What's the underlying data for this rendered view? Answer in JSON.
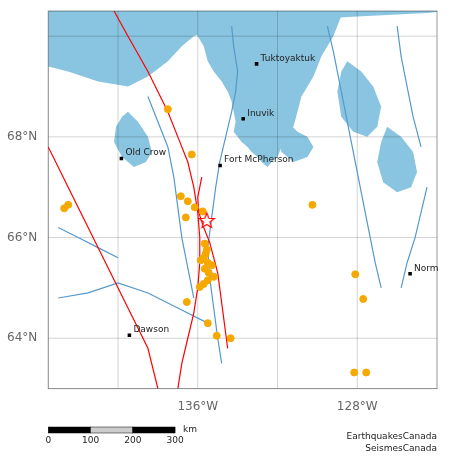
{
  "chart_data": {
    "type": "scatter",
    "xlim": [
      -143.5,
      -124.0
    ],
    "ylim": [
      63.0,
      70.5
    ],
    "xticks": [
      {
        "value": -136,
        "label": "136°W"
      },
      {
        "value": -128,
        "label": "128°W"
      }
    ],
    "yticks": [
      {
        "value": 64,
        "label": "64°N"
      },
      {
        "value": 66,
        "label": "66°N"
      },
      {
        "value": 68,
        "label": "68°N"
      }
    ],
    "grid": true,
    "grid_lons": [
      -140,
      -136,
      -132,
      -128
    ],
    "grid_lats": [
      64,
      66,
      68,
      70
    ],
    "series": [
      {
        "type": "area",
        "color": "#89c4e0",
        "x": [
          -143.5,
          -143.5,
          -142.5,
          -141.0,
          -139.5,
          -138.5,
          -137.5,
          -136.8,
          -136.2,
          -135.5,
          -134.8,
          -134.0,
          -133.2,
          -132.5,
          -131.5,
          -130.5,
          -129.5,
          -128.5,
          -127.5,
          -126.5,
          -125.5,
          -124.5,
          -124.0,
          -124.0
        ],
        "values": [
          70.5,
          69.4,
          69.3,
          69.1,
          69.0,
          69.2,
          69.5,
          69.8,
          70.0,
          70.1,
          70.15,
          70.2,
          70.25,
          70.28,
          70.3,
          70.32,
          70.35,
          70.38,
          70.4,
          70.42,
          70.44,
          70.46,
          70.48,
          70.5
        ]
      },
      {
        "type": "area",
        "color": "#89c4e0",
        "x": [
          -136.5,
          -136.3,
          -136.0,
          -135.7,
          -135.5,
          -135.2,
          -134.8,
          -134.5,
          -134.3,
          -134.2,
          -134.1,
          -134.2,
          -134.0,
          -133.8,
          -133.5,
          -133.3,
          -133.0,
          -132.8,
          -132.5,
          -132.3,
          -132.0,
          -131.8,
          -131.5,
          -131.2,
          -131.0,
          -130.8,
          -130.5,
          -130.2,
          -130.0,
          -129.8,
          -129.5,
          -129.2,
          -129.0,
          -128.8,
          -128.5
        ],
        "values": [
          70.5,
          70.2,
          70.0,
          69.8,
          69.5,
          69.3,
          69.1,
          68.9,
          68.7,
          68.5,
          68.3,
          68.1,
          68.0,
          67.9,
          67.8,
          67.7,
          67.6,
          67.5,
          67.4,
          67.5,
          67.6,
          67.8,
          68.0,
          68.2,
          68.5,
          68.8,
          69.0,
          69.2,
          69.4,
          69.6,
          69.8,
          70.0,
          70.2,
          70.4,
          70.5
        ]
      },
      {
        "type": "area",
        "color": "#89c4e0",
        "x": [
          -128.5,
          -127.8,
          -127.2,
          -126.8,
          -127.0,
          -127.5,
          -128.2,
          -128.8,
          -129.0,
          -128.8
        ],
        "values": [
          69.5,
          69.3,
          69.0,
          68.6,
          68.2,
          68.0,
          68.1,
          68.4,
          68.9,
          69.3
        ]
      },
      {
        "type": "area",
        "color": "#89c4e0",
        "x": [
          -126.5,
          -125.8,
          -125.2,
          -125.0,
          -125.3,
          -126.0,
          -126.7,
          -127.0,
          -126.8
        ],
        "values": [
          68.2,
          68.0,
          67.7,
          67.3,
          67.0,
          66.9,
          67.1,
          67.5,
          67.9
        ]
      },
      {
        "type": "area",
        "color": "#89c4e0",
        "x": [
          -131.5,
          -131.0,
          -130.5,
          -130.2,
          -130.5,
          -131.2,
          -131.8,
          -132.0
        ],
        "values": [
          68.3,
          68.1,
          68.0,
          67.8,
          67.6,
          67.5,
          67.7,
          68.0
        ]
      },
      {
        "type": "area",
        "color": "#89c4e0",
        "x": [
          -139.5,
          -139.0,
          -138.5,
          -138.3,
          -138.6,
          -139.2,
          -139.8,
          -140.2,
          -140.1,
          -139.8
        ],
        "values": [
          68.5,
          68.3,
          68.0,
          67.7,
          67.5,
          67.4,
          67.6,
          67.9,
          68.2,
          68.4
        ]
      },
      {
        "type": "line",
        "color": "red",
        "x": [
          -140.2,
          -139.5,
          -138.5,
          -137.5,
          -137.0,
          -136.5,
          -136.2,
          -136.0,
          -135.9,
          -135.9,
          -136.0,
          -136.2,
          -136.5,
          -136.8,
          -137.0
        ],
        "values": [
          70.5,
          70.0,
          69.3,
          68.5,
          68.0,
          67.5,
          67.0,
          66.5,
          66.0,
          65.5,
          65.0,
          64.5,
          64.0,
          63.5,
          63.0
        ]
      },
      {
        "type": "line",
        "color": "red",
        "x": [
          -143.5,
          -142.5,
          -141.5,
          -140.5,
          -139.5,
          -138.5,
          -138.0
        ],
        "values": [
          67.8,
          67.0,
          66.2,
          65.4,
          64.6,
          63.8,
          63.0
        ]
      },
      {
        "type": "line",
        "color": "red",
        "x": [
          -135.8,
          -135.9,
          -136.0,
          -135.95,
          -135.7,
          -135.4,
          -135.2,
          -135.0,
          -134.9,
          -134.8,
          -134.7,
          -134.6,
          -134.5
        ],
        "values": [
          67.2,
          67.0,
          66.8,
          66.5,
          66.2,
          65.9,
          65.6,
          65.3,
          65.0,
          64.7,
          64.4,
          64.1,
          63.8
        ]
      },
      {
        "type": "line",
        "color": "#5599cc",
        "x": [
          -138.5,
          -138.0,
          -137.5,
          -137.2,
          -137.0,
          -136.8,
          -136.5,
          -136.2
        ],
        "values": [
          68.8,
          68.3,
          67.8,
          67.2,
          66.6,
          66.0,
          65.4,
          64.8
        ]
      },
      {
        "type": "line",
        "color": "#5599cc",
        "x": [
          -134.3,
          -134.2,
          -134.0,
          -134.1,
          -134.3,
          -134.6,
          -134.9,
          -135.1,
          -135.3,
          -135.5,
          -135.4,
          -135.2,
          -135.0,
          -134.8
        ],
        "values": [
          70.2,
          69.8,
          69.3,
          68.9,
          68.5,
          68.0,
          67.5,
          67.0,
          66.4,
          65.8,
          65.2,
          64.6,
          64.0,
          63.5
        ]
      },
      {
        "type": "line",
        "color": "#5599cc",
        "x": [
          -129.5,
          -129.2,
          -128.9,
          -128.6,
          -128.3,
          -128.0,
          -127.7,
          -127.4,
          -127.1,
          -126.8
        ],
        "values": [
          70.2,
          69.7,
          69.1,
          68.5,
          67.9,
          67.3,
          66.7,
          66.1,
          65.5,
          65.0
        ]
      },
      {
        "type": "line",
        "color": "#5599cc",
        "x": [
          -143.0,
          -141.5,
          -140.0,
          -138.5,
          -137.0,
          -135.5
        ],
        "values": [
          64.8,
          64.9,
          65.1,
          64.9,
          64.6,
          64.3
        ]
      },
      {
        "type": "line",
        "color": "#5599cc",
        "x": [
          -143.0,
          -142.0,
          -141.0,
          -140.0
        ],
        "values": [
          66.2,
          66.0,
          65.8,
          65.6
        ]
      },
      {
        "type": "line",
        "color": "#5599cc",
        "x": [
          -124.5,
          -124.8,
          -125.1,
          -125.5,
          -125.8
        ],
        "values": [
          67.0,
          66.5,
          66.0,
          65.5,
          65.0
        ]
      },
      {
        "type": "line",
        "color": "#5599cc",
        "x": [
          -126.0,
          -125.8,
          -125.5,
          -125.2,
          -124.8
        ],
        "values": [
          70.2,
          69.6,
          69.0,
          68.4,
          67.8
        ]
      },
      {
        "type": "scatter",
        "marker": "square",
        "color": "black",
        "data_labels": true,
        "x": [
          -133.05,
          -133.72,
          -134.88,
          -139.83,
          -139.43,
          -125.35
        ],
        "values": [
          69.45,
          68.36,
          67.43,
          67.57,
          64.06,
          65.28
        ],
        "value_labels": [
          "Tuktoyaktuk",
          "Inuvik",
          "Fort McPherson",
          "Old Crow",
          "Dawson",
          "Norm"
        ]
      },
      {
        "type": "scatter",
        "marker": "circle",
        "color": "#f5a800",
        "x": [
          -137.5,
          -136.3,
          -136.85,
          -136.5,
          -136.15,
          -135.75,
          -136.6,
          -135.65,
          -135.55,
          -135.6,
          -135.7,
          -135.85,
          -135.5,
          -135.3,
          -135.65,
          -135.45,
          -135.2,
          -135.5,
          -135.7,
          -135.9,
          -136.55,
          -135.5,
          -135.05,
          -134.35,
          -130.25,
          -128.1,
          -127.7,
          -127.55,
          -128.15,
          -142.5,
          -142.7
        ],
        "values": [
          68.55,
          67.65,
          66.82,
          66.72,
          66.6,
          66.52,
          66.4,
          65.88,
          65.76,
          65.68,
          65.6,
          65.55,
          65.5,
          65.45,
          65.38,
          65.3,
          65.22,
          65.15,
          65.08,
          65.02,
          64.72,
          64.3,
          64.05,
          64.0,
          66.65,
          65.27,
          64.78,
          63.32,
          63.32,
          66.65,
          66.58
        ]
      },
      {
        "type": "scatter",
        "marker": "star",
        "color": "red",
        "x": [
          -135.55
        ],
        "values": [
          66.33
        ]
      }
    ],
    "scale_bar": {
      "ticks": [
        0,
        100,
        200,
        300
      ],
      "label": "km",
      "colors": [
        "black",
        "#cccccc",
        "black"
      ]
    },
    "annotations": [
      {
        "text": "EarthquakesCanada\nSeismesCanada"
      }
    ]
  }
}
